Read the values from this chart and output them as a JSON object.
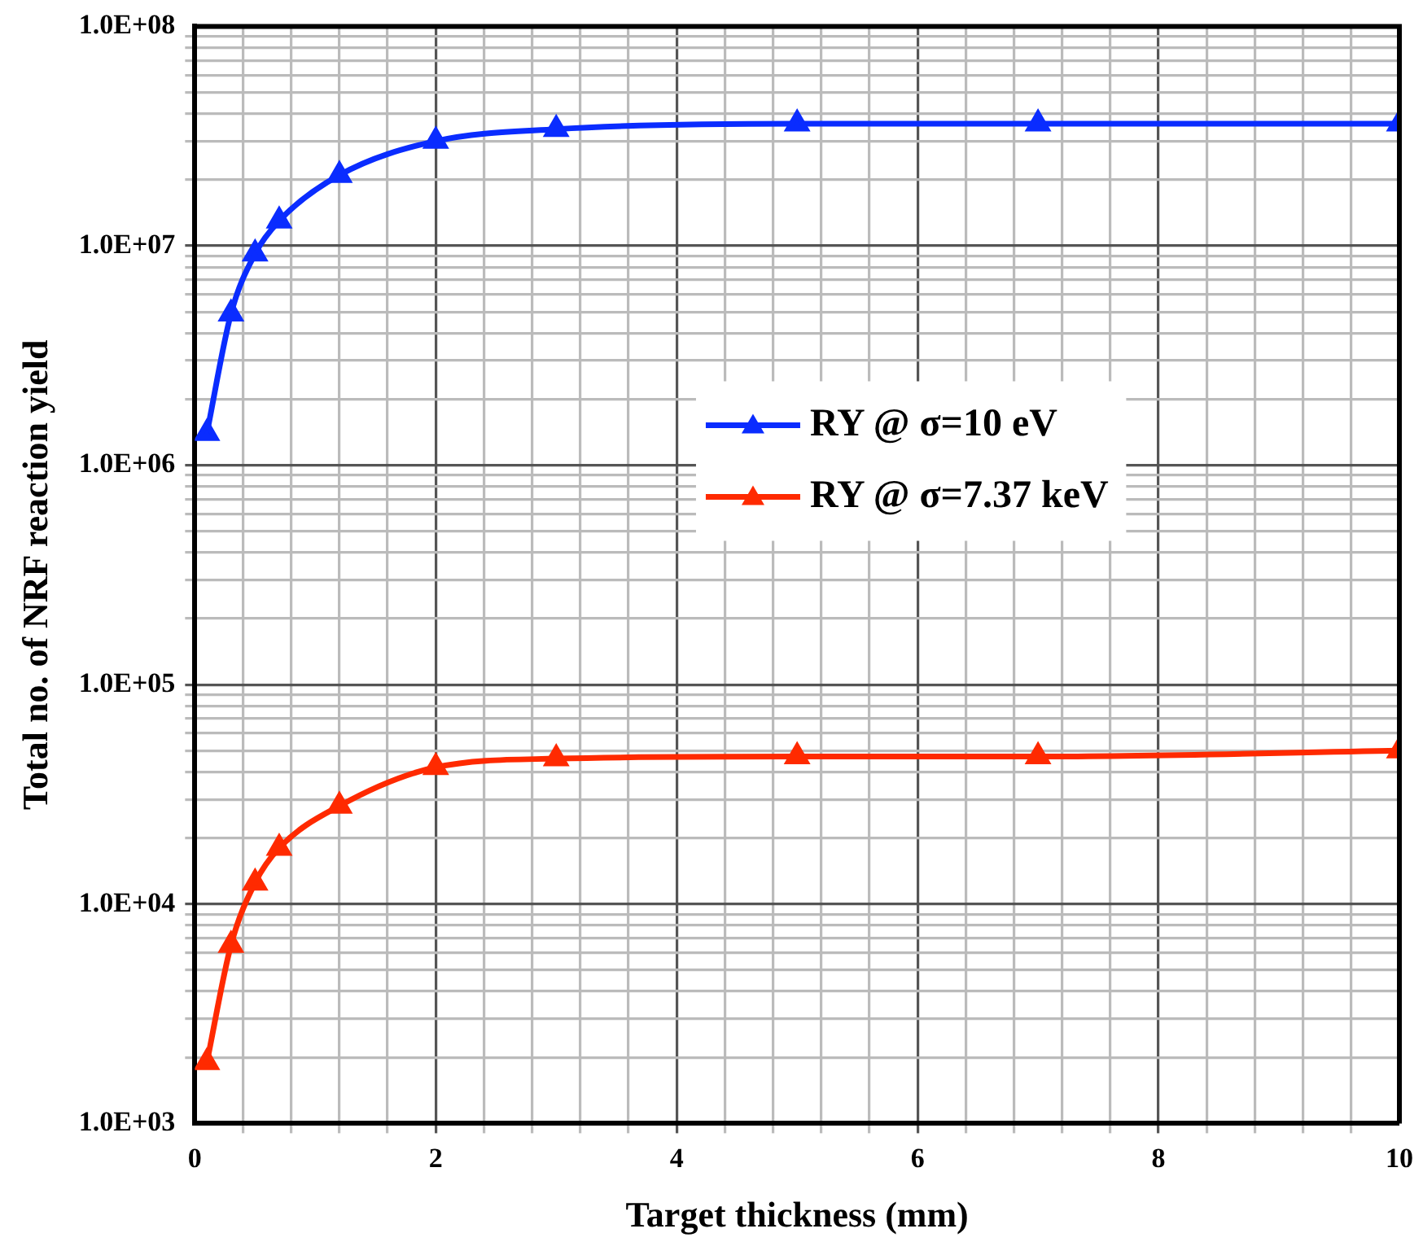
{
  "chart_data": {
    "type": "line",
    "xlabel": "Target thickness (mm)",
    "ylabel": "Total no. of NRF reaction yield",
    "x": [
      0.1,
      0.3,
      0.5,
      0.7,
      1.2,
      2,
      3,
      5,
      7,
      10
    ],
    "series": [
      {
        "name": "RY @ σ=10 eV",
        "color": "#0a2cff",
        "values": [
          1400000.0,
          4900000.0,
          9200000.0,
          13000000.0,
          21000000.0,
          30000000.0,
          34000000.0,
          36000000.0,
          36000000.0,
          36000000.0
        ]
      },
      {
        "name": "RY @ σ=7.37 keV",
        "color": "#ff2a00",
        "values": [
          1900.0,
          6500.0,
          12500.0,
          18000.0,
          28000.0,
          42000.0,
          46000.0,
          47000.0,
          47000.0,
          50000.0
        ]
      }
    ],
    "log": "y",
    "xlim": [
      0,
      10
    ],
    "xticks": [
      0,
      {
        "value": 0.4,
        "label": null
      },
      {
        "value": 0.8,
        "label": null
      },
      {
        "value": 1.2,
        "label": null
      },
      {
        "value": 1.6,
        "label": null
      },
      2,
      {
        "value": 2.4,
        "label": null
      },
      {
        "value": 2.8,
        "label": null
      },
      {
        "value": 3.2,
        "label": null
      },
      {
        "value": 3.6,
        "label": null
      },
      4,
      {
        "value": 4.4,
        "label": null
      },
      {
        "value": 4.8,
        "label": null
      },
      {
        "value": 5.2,
        "label": null
      },
      {
        "value": 5.6,
        "label": null
      },
      6,
      {
        "value": 6.4,
        "label": null
      },
      {
        "value": 6.8,
        "label": null
      },
      {
        "value": 7.2,
        "label": null
      },
      {
        "value": 7.6,
        "label": null
      },
      8,
      {
        "value": 8.4,
        "label": null
      },
      {
        "value": 8.8,
        "label": null
      },
      {
        "value": 9.2,
        "label": null
      },
      {
        "value": 9.6,
        "label": null
      },
      10
    ],
    "ylim": [
      1000,
      100000000
    ],
    "yticks": [
      {
        "value": 1000,
        "label": "1.0E+03"
      },
      {
        "value": 10000,
        "label": "1.0E+04"
      },
      {
        "value": 100000,
        "label": "1.0E+05"
      },
      {
        "value": 1000000,
        "label": "1.0E+06"
      },
      {
        "value": 10000000,
        "label": "1.0E+07"
      },
      {
        "value": 100000000,
        "label": "1.0E+08"
      }
    ],
    "grid": true,
    "legend": "center",
    "marker": "triangle",
    "line_style": "solid"
  }
}
